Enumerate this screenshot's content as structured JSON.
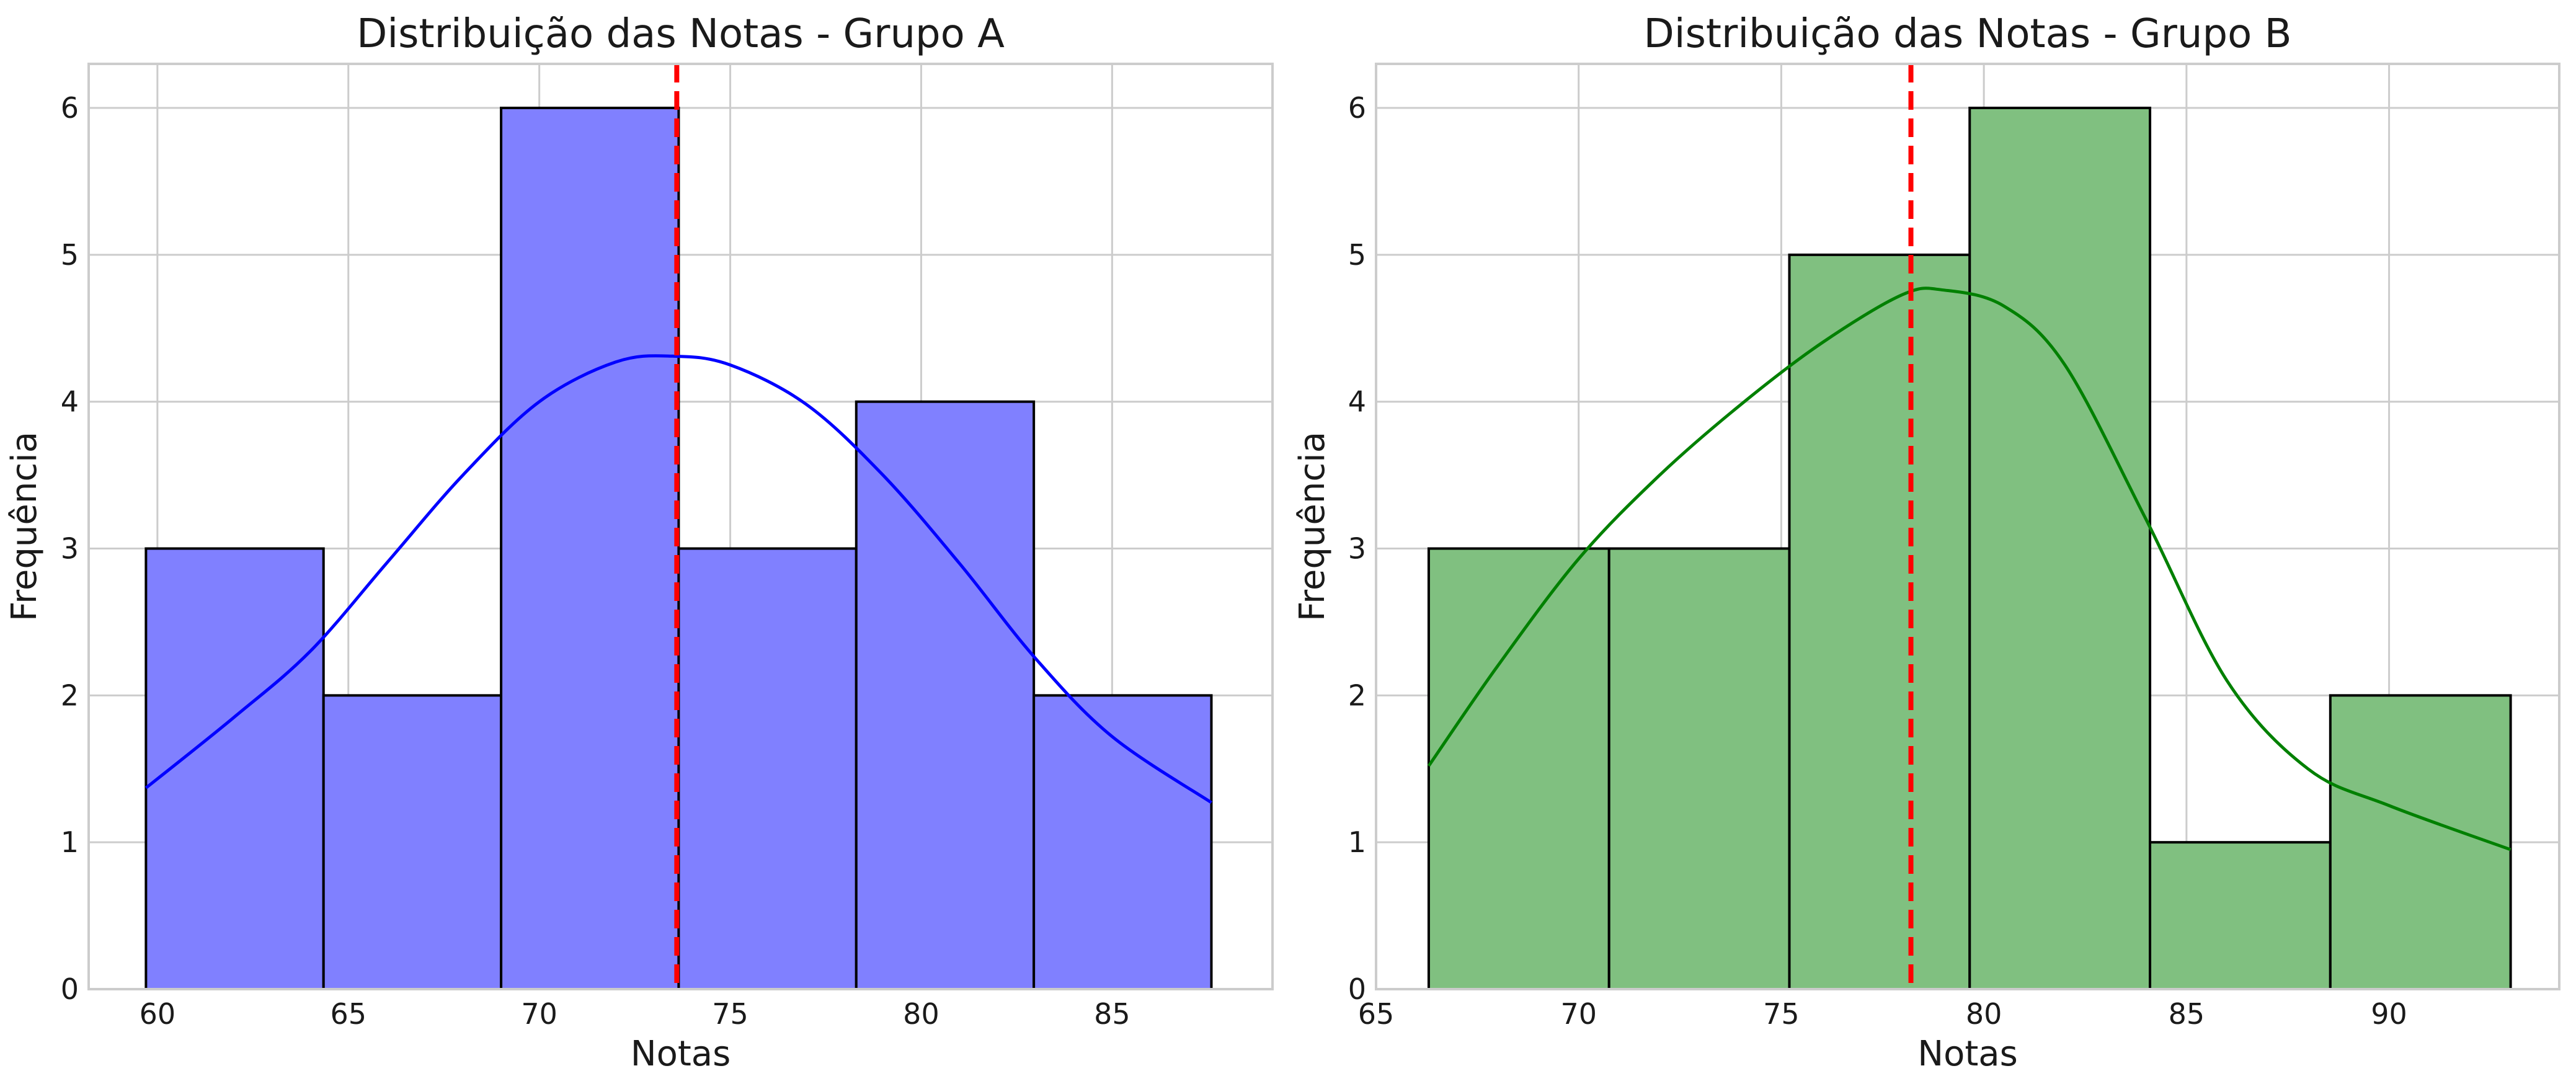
{
  "chart_data": [
    {
      "type": "bar",
      "title": "Distribuição das Notas - Grupo A",
      "xlabel": "Notas",
      "ylabel": "Frequência",
      "xlim": [
        58.2,
        89.2
      ],
      "ylim": [
        0,
        6.3
      ],
      "xticks": [
        60,
        65,
        70,
        75,
        80,
        85
      ],
      "yticks": [
        0,
        1,
        2,
        3,
        4,
        5,
        6
      ],
      "grid": true,
      "bins": [
        {
          "start": 59.7,
          "end": 64.35,
          "count": 3
        },
        {
          "start": 64.35,
          "end": 69.0,
          "count": 2
        },
        {
          "start": 69.0,
          "end": 73.65,
          "count": 6
        },
        {
          "start": 73.65,
          "end": 78.3,
          "count": 3
        },
        {
          "start": 78.3,
          "end": 82.95,
          "count": 4
        },
        {
          "start": 82.95,
          "end": 87.6,
          "count": 2
        }
      ],
      "kde": {
        "x": [
          59.7,
          62,
          64,
          66,
          68,
          70,
          72,
          73.5,
          75,
          77,
          79,
          81,
          83,
          85,
          87.6
        ],
        "y": [
          1.37,
          1.85,
          2.3,
          2.9,
          3.5,
          4.0,
          4.27,
          4.31,
          4.25,
          3.98,
          3.5,
          2.9,
          2.25,
          1.72,
          1.27
        ]
      },
      "mean_line": 73.6,
      "colors": {
        "bar": "#8080ff",
        "edge": "#000000",
        "kde": "#0000ff",
        "mean": "#ff0000"
      }
    },
    {
      "type": "bar",
      "title": "Distribuição das Notas - Grupo B",
      "xlabel": "Notas",
      "ylabel": "Frequência",
      "xlim": [
        65,
        94.2
      ],
      "ylim": [
        0,
        6.3
      ],
      "xticks": [
        65,
        70,
        75,
        80,
        85,
        90
      ],
      "yticks": [
        0,
        1,
        2,
        3,
        4,
        5,
        6
      ],
      "grid": true,
      "bins": [
        {
          "start": 66.3,
          "end": 70.75,
          "count": 3
        },
        {
          "start": 70.75,
          "end": 75.2,
          "count": 3
        },
        {
          "start": 75.2,
          "end": 79.65,
          "count": 5
        },
        {
          "start": 79.65,
          "end": 84.1,
          "count": 6
        },
        {
          "start": 84.1,
          "end": 88.55,
          "count": 1
        },
        {
          "start": 88.55,
          "end": 93.0,
          "count": 2
        }
      ],
      "kde": {
        "x": [
          66.3,
          68,
          70,
          72,
          74,
          76,
          78,
          79,
          80.5,
          82,
          84,
          86,
          88,
          90,
          93
        ],
        "y": [
          1.52,
          2.2,
          2.93,
          3.5,
          3.98,
          4.4,
          4.73,
          4.76,
          4.65,
          4.25,
          3.2,
          2.1,
          1.5,
          1.25,
          0.95
        ]
      },
      "mean_line": 78.2,
      "colors": {
        "bar": "#80c080",
        "edge": "#000000",
        "kde": "#008000",
        "mean": "#ff0000"
      }
    }
  ]
}
